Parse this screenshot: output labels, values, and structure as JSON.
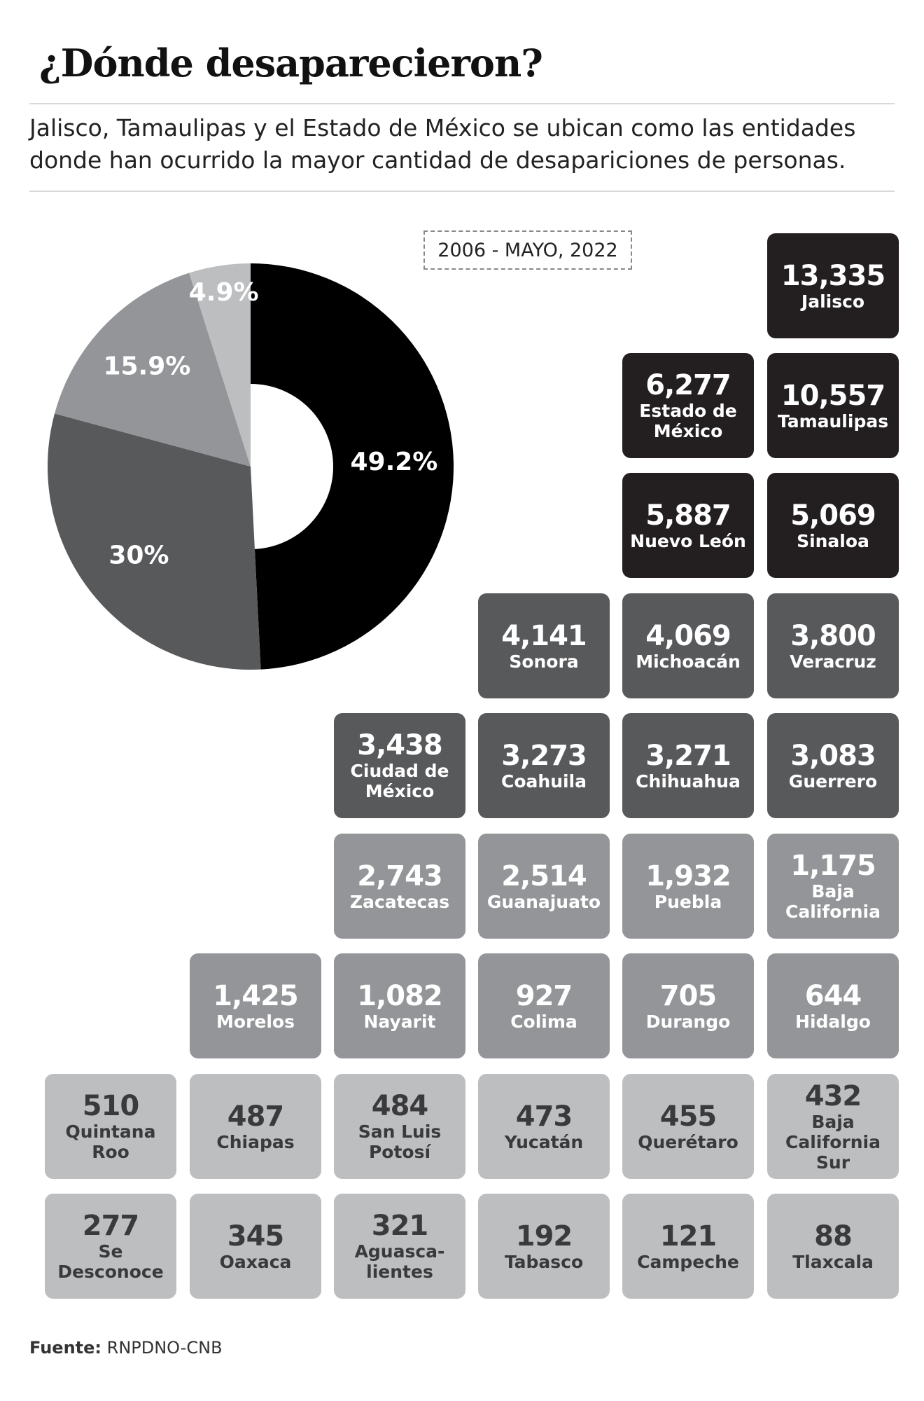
{
  "header": {
    "title": "¿Dónde desaparecieron?",
    "subtitle": "Jalisco, Tamaulipas y el Estado de México se ubican como las entidades donde han ocurrido la mayor cantidad de desapariciones de personas."
  },
  "period": "2006 - MAYO, 2022",
  "colors": {
    "tier1": "#231f20",
    "tier2": "#58595b",
    "tier3": "#939598",
    "tier4": "#bcbec0",
    "dark_text": "#3a3a3c"
  },
  "chart_data": [
    {
      "type": "pie",
      "donut": true,
      "labels": [
        "49.2%",
        "30%",
        "15.9%",
        "4.9%"
      ],
      "values": [
        49.2,
        30,
        15.9,
        4.9
      ],
      "colors": [
        "#000000",
        "#58595b",
        "#939598",
        "#bcbec0"
      ]
    },
    {
      "type": "table",
      "states": [
        {
          "value": "13,335",
          "name": "Jalisco",
          "tier": 1,
          "row": 0,
          "col": 5
        },
        {
          "value": "6,277",
          "name": "Estado de México",
          "tier": 1,
          "row": 1,
          "col": 4
        },
        {
          "value": "10,557",
          "name": "Tamaulipas",
          "tier": 1,
          "row": 1,
          "col": 5
        },
        {
          "value": "5,887",
          "name": "Nuevo León",
          "tier": 1,
          "row": 2,
          "col": 4
        },
        {
          "value": "5,069",
          "name": "Sinaloa",
          "tier": 1,
          "row": 2,
          "col": 5
        },
        {
          "value": "4,141",
          "name": "Sonora",
          "tier": 2,
          "row": 3,
          "col": 3
        },
        {
          "value": "4,069",
          "name": "Michoacán",
          "tier": 2,
          "row": 3,
          "col": 4
        },
        {
          "value": "3,800",
          "name": "Veracruz",
          "tier": 2,
          "row": 3,
          "col": 5
        },
        {
          "value": "3,438",
          "name": "Ciudad de México",
          "tier": 2,
          "row": 4,
          "col": 2
        },
        {
          "value": "3,273",
          "name": "Coahuila",
          "tier": 2,
          "row": 4,
          "col": 3
        },
        {
          "value": "3,271",
          "name": "Chihuahua",
          "tier": 2,
          "row": 4,
          "col": 4
        },
        {
          "value": "3,083",
          "name": "Guerrero",
          "tier": 2,
          "row": 4,
          "col": 5
        },
        {
          "value": "2,743",
          "name": "Zacatecas",
          "tier": 3,
          "row": 5,
          "col": 2
        },
        {
          "value": "2,514",
          "name": "Guanajuato",
          "tier": 3,
          "row": 5,
          "col": 3
        },
        {
          "value": "1,932",
          "name": "Puebla",
          "tier": 3,
          "row": 5,
          "col": 4
        },
        {
          "value": "1,175",
          "name": "Baja California",
          "tier": 3,
          "row": 5,
          "col": 5
        },
        {
          "value": "1,425",
          "name": "Morelos",
          "tier": 3,
          "row": 6,
          "col": 1
        },
        {
          "value": "1,082",
          "name": "Nayarit",
          "tier": 3,
          "row": 6,
          "col": 2
        },
        {
          "value": "927",
          "name": "Colima",
          "tier": 3,
          "row": 6,
          "col": 3
        },
        {
          "value": "705",
          "name": "Durango",
          "tier": 3,
          "row": 6,
          "col": 4
        },
        {
          "value": "644",
          "name": "Hidalgo",
          "tier": 3,
          "row": 6,
          "col": 5
        },
        {
          "value": "510",
          "name": "Quintana Roo",
          "tier": 4,
          "row": 7,
          "col": 0
        },
        {
          "value": "487",
          "name": "Chiapas",
          "tier": 4,
          "row": 7,
          "col": 1
        },
        {
          "value": "484",
          "name": "San Luis Potosí",
          "tier": 4,
          "row": 7,
          "col": 2
        },
        {
          "value": "473",
          "name": "Yucatán",
          "tier": 4,
          "row": 7,
          "col": 3
        },
        {
          "value": "455",
          "name": "Querétaro",
          "tier": 4,
          "row": 7,
          "col": 4
        },
        {
          "value": "432",
          "name": "Baja California Sur",
          "tier": 4,
          "row": 7,
          "col": 5
        },
        {
          "value": "277",
          "name": "Se Desconoce",
          "tier": 4,
          "row": 8,
          "col": 0
        },
        {
          "value": "345",
          "name": "Oaxaca",
          "tier": 4,
          "row": 8,
          "col": 1
        },
        {
          "value": "321",
          "name": "Aguasca-lientes",
          "tier": 4,
          "row": 8,
          "col": 2
        },
        {
          "value": "192",
          "name": "Tabasco",
          "tier": 4,
          "row": 8,
          "col": 3
        },
        {
          "value": "121",
          "name": "Campeche",
          "tier": 4,
          "row": 8,
          "col": 4
        },
        {
          "value": "88",
          "name": "Tlaxcala",
          "tier": 4,
          "row": 8,
          "col": 5
        }
      ]
    }
  ],
  "source": {
    "label": "Fuente:",
    "value": "RNPDNO-CNB"
  }
}
